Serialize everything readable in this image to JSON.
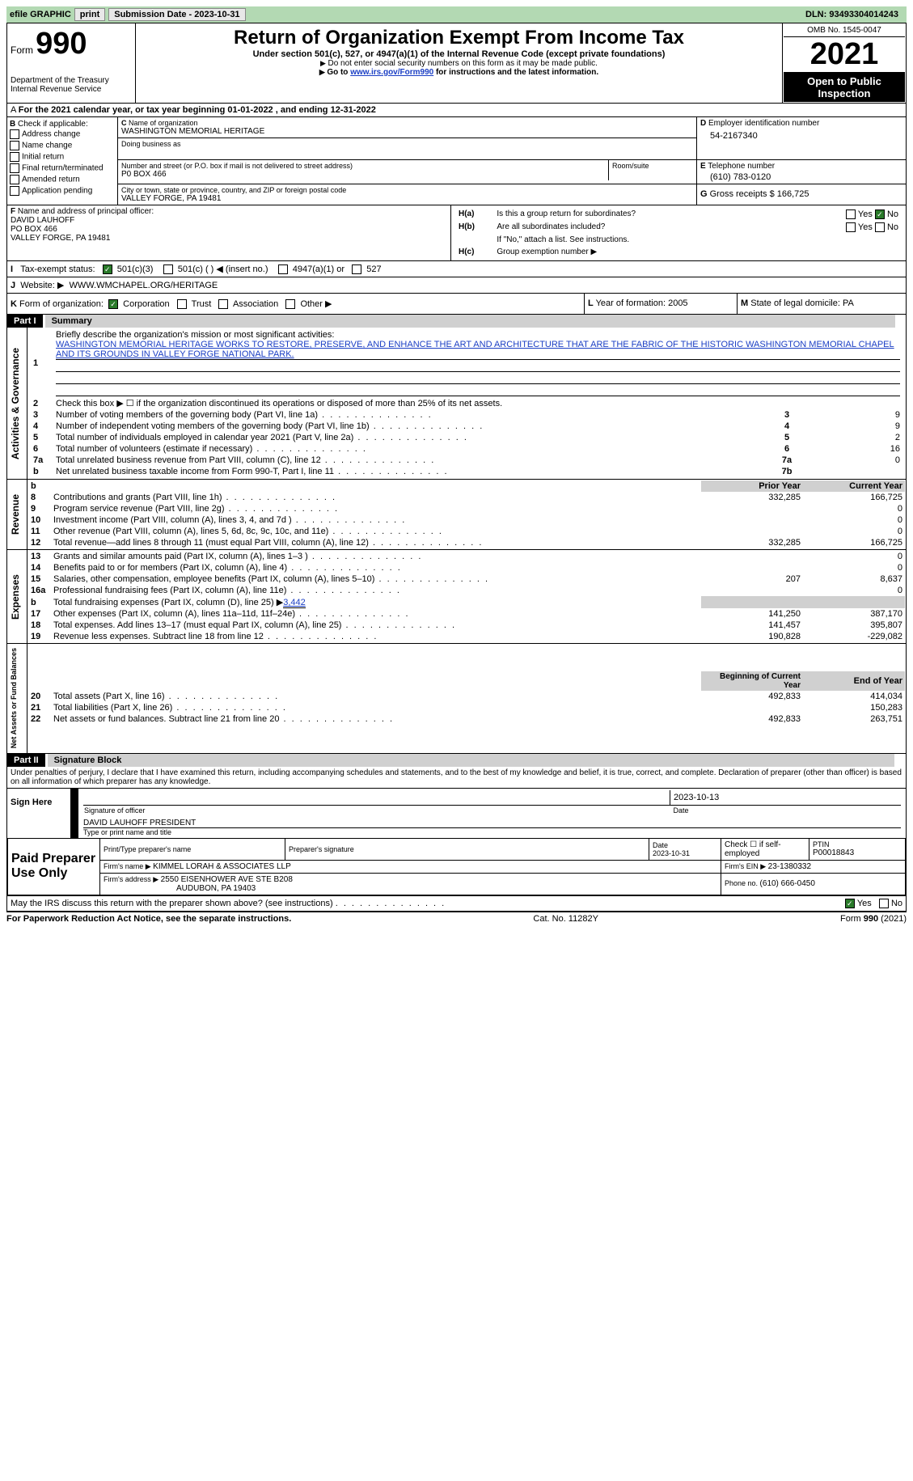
{
  "topbar": {
    "efile": "efile GRAPHIC",
    "print": "print",
    "submission_lbl": "Submission Date - ",
    "submission_date": "2023-10-31",
    "dln_lbl": "DLN: ",
    "dln": "93493304014243"
  },
  "header": {
    "form": "Form",
    "form_num": "990",
    "dept": "Department of the Treasury\nInternal Revenue Service",
    "title": "Return of Organization Exempt From Income Tax",
    "subtitle1": "Under section 501(c), 527, or 4947(a)(1) of the Internal Revenue Code (except private foundations)",
    "subtitle2": "Do not enter social security numbers on this form as it may be made public.",
    "subtitle3_pre": "Go to ",
    "subtitle3_link": "www.irs.gov/Form990",
    "subtitle3_post": " for instructions and the latest information.",
    "omb": "OMB No. 1545-0047",
    "year": "2021",
    "open": "Open to Public Inspection"
  },
  "periodA": {
    "text_pre": "For the 2021 calendar year, or tax year beginning ",
    "begin": "01-01-2022",
    "mid": "   , and ending ",
    "end": "12-31-2022"
  },
  "B": {
    "lbl": "Check if applicable:",
    "items": [
      "Address change",
      "Name change",
      "Initial return",
      "Final return/terminated",
      "Amended return",
      "Application pending"
    ]
  },
  "C": {
    "name_lbl": "Name of organization",
    "name": "WASHINGTON MEMORIAL HERITAGE",
    "dba_lbl": "Doing business as",
    "street_lbl": "Number and street (or P.O. box if mail is not delivered to street address)",
    "street": "P0 BOX 466",
    "room_lbl": "Room/suite",
    "city_lbl": "City or town, state or province, country, and ZIP or foreign postal code",
    "city": "VALLEY FORGE, PA  19481"
  },
  "D": {
    "lbl": "Employer identification number",
    "val": "54-2167340"
  },
  "E": {
    "lbl": "Telephone number",
    "val": "(610) 783-0120"
  },
  "G": {
    "lbl": "Gross receipts $ ",
    "val": "166,725"
  },
  "F": {
    "lbl": "Name and address of principal officer:",
    "name": "DAVID LAUHOFF",
    "addr1": "PO BOX 466",
    "addr2": "VALLEY FORGE, PA  19481"
  },
  "H": {
    "a": "Is this a group return for subordinates?",
    "b": "Are all subordinates included?",
    "note": "If \"No,\" attach a list. See instructions.",
    "c": "Group exemption number ▶",
    "yes": "Yes",
    "no": "No"
  },
  "I": {
    "lbl": "Tax-exempt status:",
    "c3": "501(c)(3)",
    "c": "501(c) (  ) ◀ (insert no.)",
    "a1": "4947(a)(1) or",
    "s527": "527"
  },
  "J": {
    "lbl": "Website: ▶",
    "val": "WWW.WMCHAPEL.ORG/HERITAGE"
  },
  "K": {
    "lbl": "Form of organization:",
    "corp": "Corporation",
    "trust": "Trust",
    "assoc": "Association",
    "other": "Other ▶"
  },
  "L": {
    "lbl": "Year of formation: ",
    "val": "2005"
  },
  "M": {
    "lbl": "State of legal domicile: ",
    "val": "PA"
  },
  "part1": {
    "hdr": "Part I",
    "title": "Summary",
    "l1_lbl": "Briefly describe the organization's mission or most significant activities:",
    "l1_val": "WASHINGTON MEMORIAL HERITAGE WORKS TO RESTORE, PRESERVE, AND ENHANCE THE ART AND ARCHITECTURE THAT ARE THE FABRIC OF THE HISTORIC WASHINGTON MEMORIAL CHAPEL AND ITS GROUNDS IN VALLEY FORGE NATIONAL PARK.",
    "l2": "Check this box ▶ ☐ if the organization discontinued its operations or disposed of more than 25% of its net assets.",
    "rows_top": [
      {
        "n": "3",
        "lbl": "Number of voting members of the governing body (Part VI, line 1a)",
        "box": "3",
        "val": "9"
      },
      {
        "n": "4",
        "lbl": "Number of independent voting members of the governing body (Part VI, line 1b)",
        "box": "4",
        "val": "9"
      },
      {
        "n": "5",
        "lbl": "Total number of individuals employed in calendar year 2021 (Part V, line 2a)",
        "box": "5",
        "val": "2"
      },
      {
        "n": "6",
        "lbl": "Total number of volunteers (estimate if necessary)",
        "box": "6",
        "val": "16"
      },
      {
        "n": "7a",
        "lbl": "Total unrelated business revenue from Part VIII, column (C), line 12",
        "box": "7a",
        "val": "0"
      }
    ],
    "l7b": {
      "n": "b",
      "lbl": "Net unrelated business taxable income from Form 990-T, Part I, line 11",
      "box": "7b",
      "val": ""
    },
    "col_prior": "Prior Year",
    "col_current": "Current Year",
    "rev": [
      {
        "n": "8",
        "lbl": "Contributions and grants (Part VIII, line 1h)",
        "p": "332,285",
        "c": "166,725"
      },
      {
        "n": "9",
        "lbl": "Program service revenue (Part VIII, line 2g)",
        "p": "",
        "c": "0"
      },
      {
        "n": "10",
        "lbl": "Investment income (Part VIII, column (A), lines 3, 4, and 7d )",
        "p": "",
        "c": "0"
      },
      {
        "n": "11",
        "lbl": "Other revenue (Part VIII, column (A), lines 5, 6d, 8c, 9c, 10c, and 11e)",
        "p": "",
        "c": "0"
      },
      {
        "n": "12",
        "lbl": "Total revenue—add lines 8 through 11 (must equal Part VIII, column (A), line 12)",
        "p": "332,285",
        "c": "166,725"
      }
    ],
    "exp": [
      {
        "n": "13",
        "lbl": "Grants and similar amounts paid (Part IX, column (A), lines 1–3 )",
        "p": "",
        "c": "0"
      },
      {
        "n": "14",
        "lbl": "Benefits paid to or for members (Part IX, column (A), line 4)",
        "p": "",
        "c": "0"
      },
      {
        "n": "15",
        "lbl": "Salaries, other compensation, employee benefits (Part IX, column (A), lines 5–10)",
        "p": "207",
        "c": "8,637"
      },
      {
        "n": "16a",
        "lbl": "Professional fundraising fees (Part IX, column (A), line 11e)",
        "p": "",
        "c": "0"
      }
    ],
    "l16b": {
      "n": "b",
      "lbl_pre": "Total fundraising expenses (Part IX, column (D), line 25) ▶",
      "val": "3,442"
    },
    "exp2": [
      {
        "n": "17",
        "lbl": "Other expenses (Part IX, column (A), lines 11a–11d, 11f–24e)",
        "p": "141,250",
        "c": "387,170"
      },
      {
        "n": "18",
        "lbl": "Total expenses. Add lines 13–17 (must equal Part IX, column (A), line 25)",
        "p": "141,457",
        "c": "395,807"
      },
      {
        "n": "19",
        "lbl": "Revenue less expenses. Subtract line 18 from line 12",
        "p": "190,828",
        "c": "-229,082"
      }
    ],
    "col_begin": "Beginning of Current Year",
    "col_end": "End of Year",
    "net": [
      {
        "n": "20",
        "lbl": "Total assets (Part X, line 16)",
        "p": "492,833",
        "c": "414,034"
      },
      {
        "n": "21",
        "lbl": "Total liabilities (Part X, line 26)",
        "p": "",
        "c": "150,283"
      },
      {
        "n": "22",
        "lbl": "Net assets or fund balances. Subtract line 21 from line 20",
        "p": "492,833",
        "c": "263,751"
      }
    ],
    "vlabels": {
      "act": "Activities & Governance",
      "rev": "Revenue",
      "exp": "Expenses",
      "net": "Net Assets or Fund Balances"
    }
  },
  "part2": {
    "hdr": "Part II",
    "title": "Signature Block",
    "decl": "Under penalties of perjury, I declare that I have examined this return, including accompanying schedules and statements, and to the best of my knowledge and belief, it is true, correct, and complete. Declaration of preparer (other than officer) is based on all information of which preparer has any knowledge.",
    "sign_here": "Sign Here",
    "sig_officer": "Signature of officer",
    "sig_date": "2023-10-13",
    "date_lbl": "Date",
    "officer_name": "DAVID LAUHOFF  PRESIDENT",
    "type_lbl": "Type or print name and title",
    "paid": "Paid Preparer Use Only",
    "prep_name_lbl": "Print/Type preparer's name",
    "prep_sig_lbl": "Preparer's signature",
    "prep_date_lbl": "Date",
    "prep_date": "2023-10-31",
    "self_lbl": "Check ☐ if self-employed",
    "ptin_lbl": "PTIN",
    "ptin": "P00018843",
    "firm_name_lbl": "Firm's name    ▶ ",
    "firm_name": "KIMMEL LORAH & ASSOCIATES LLP",
    "firm_ein_lbl": "Firm's EIN ▶ ",
    "firm_ein": "23-1380332",
    "firm_addr_lbl": "Firm's address ▶ ",
    "firm_addr1": "2550 EISENHOWER AVE STE B208",
    "firm_addr2": "AUDUBON, PA  19403",
    "phone_lbl": "Phone no. ",
    "phone": "(610) 666-0450",
    "discuss": "May the IRS discuss this return with the preparer shown above? (see instructions)",
    "yes": "Yes",
    "no": "No"
  },
  "footer": {
    "pra": "For Paperwork Reduction Act Notice, see the separate instructions.",
    "cat": "Cat. No. 11282Y",
    "form": "Form 990 (2021)"
  }
}
